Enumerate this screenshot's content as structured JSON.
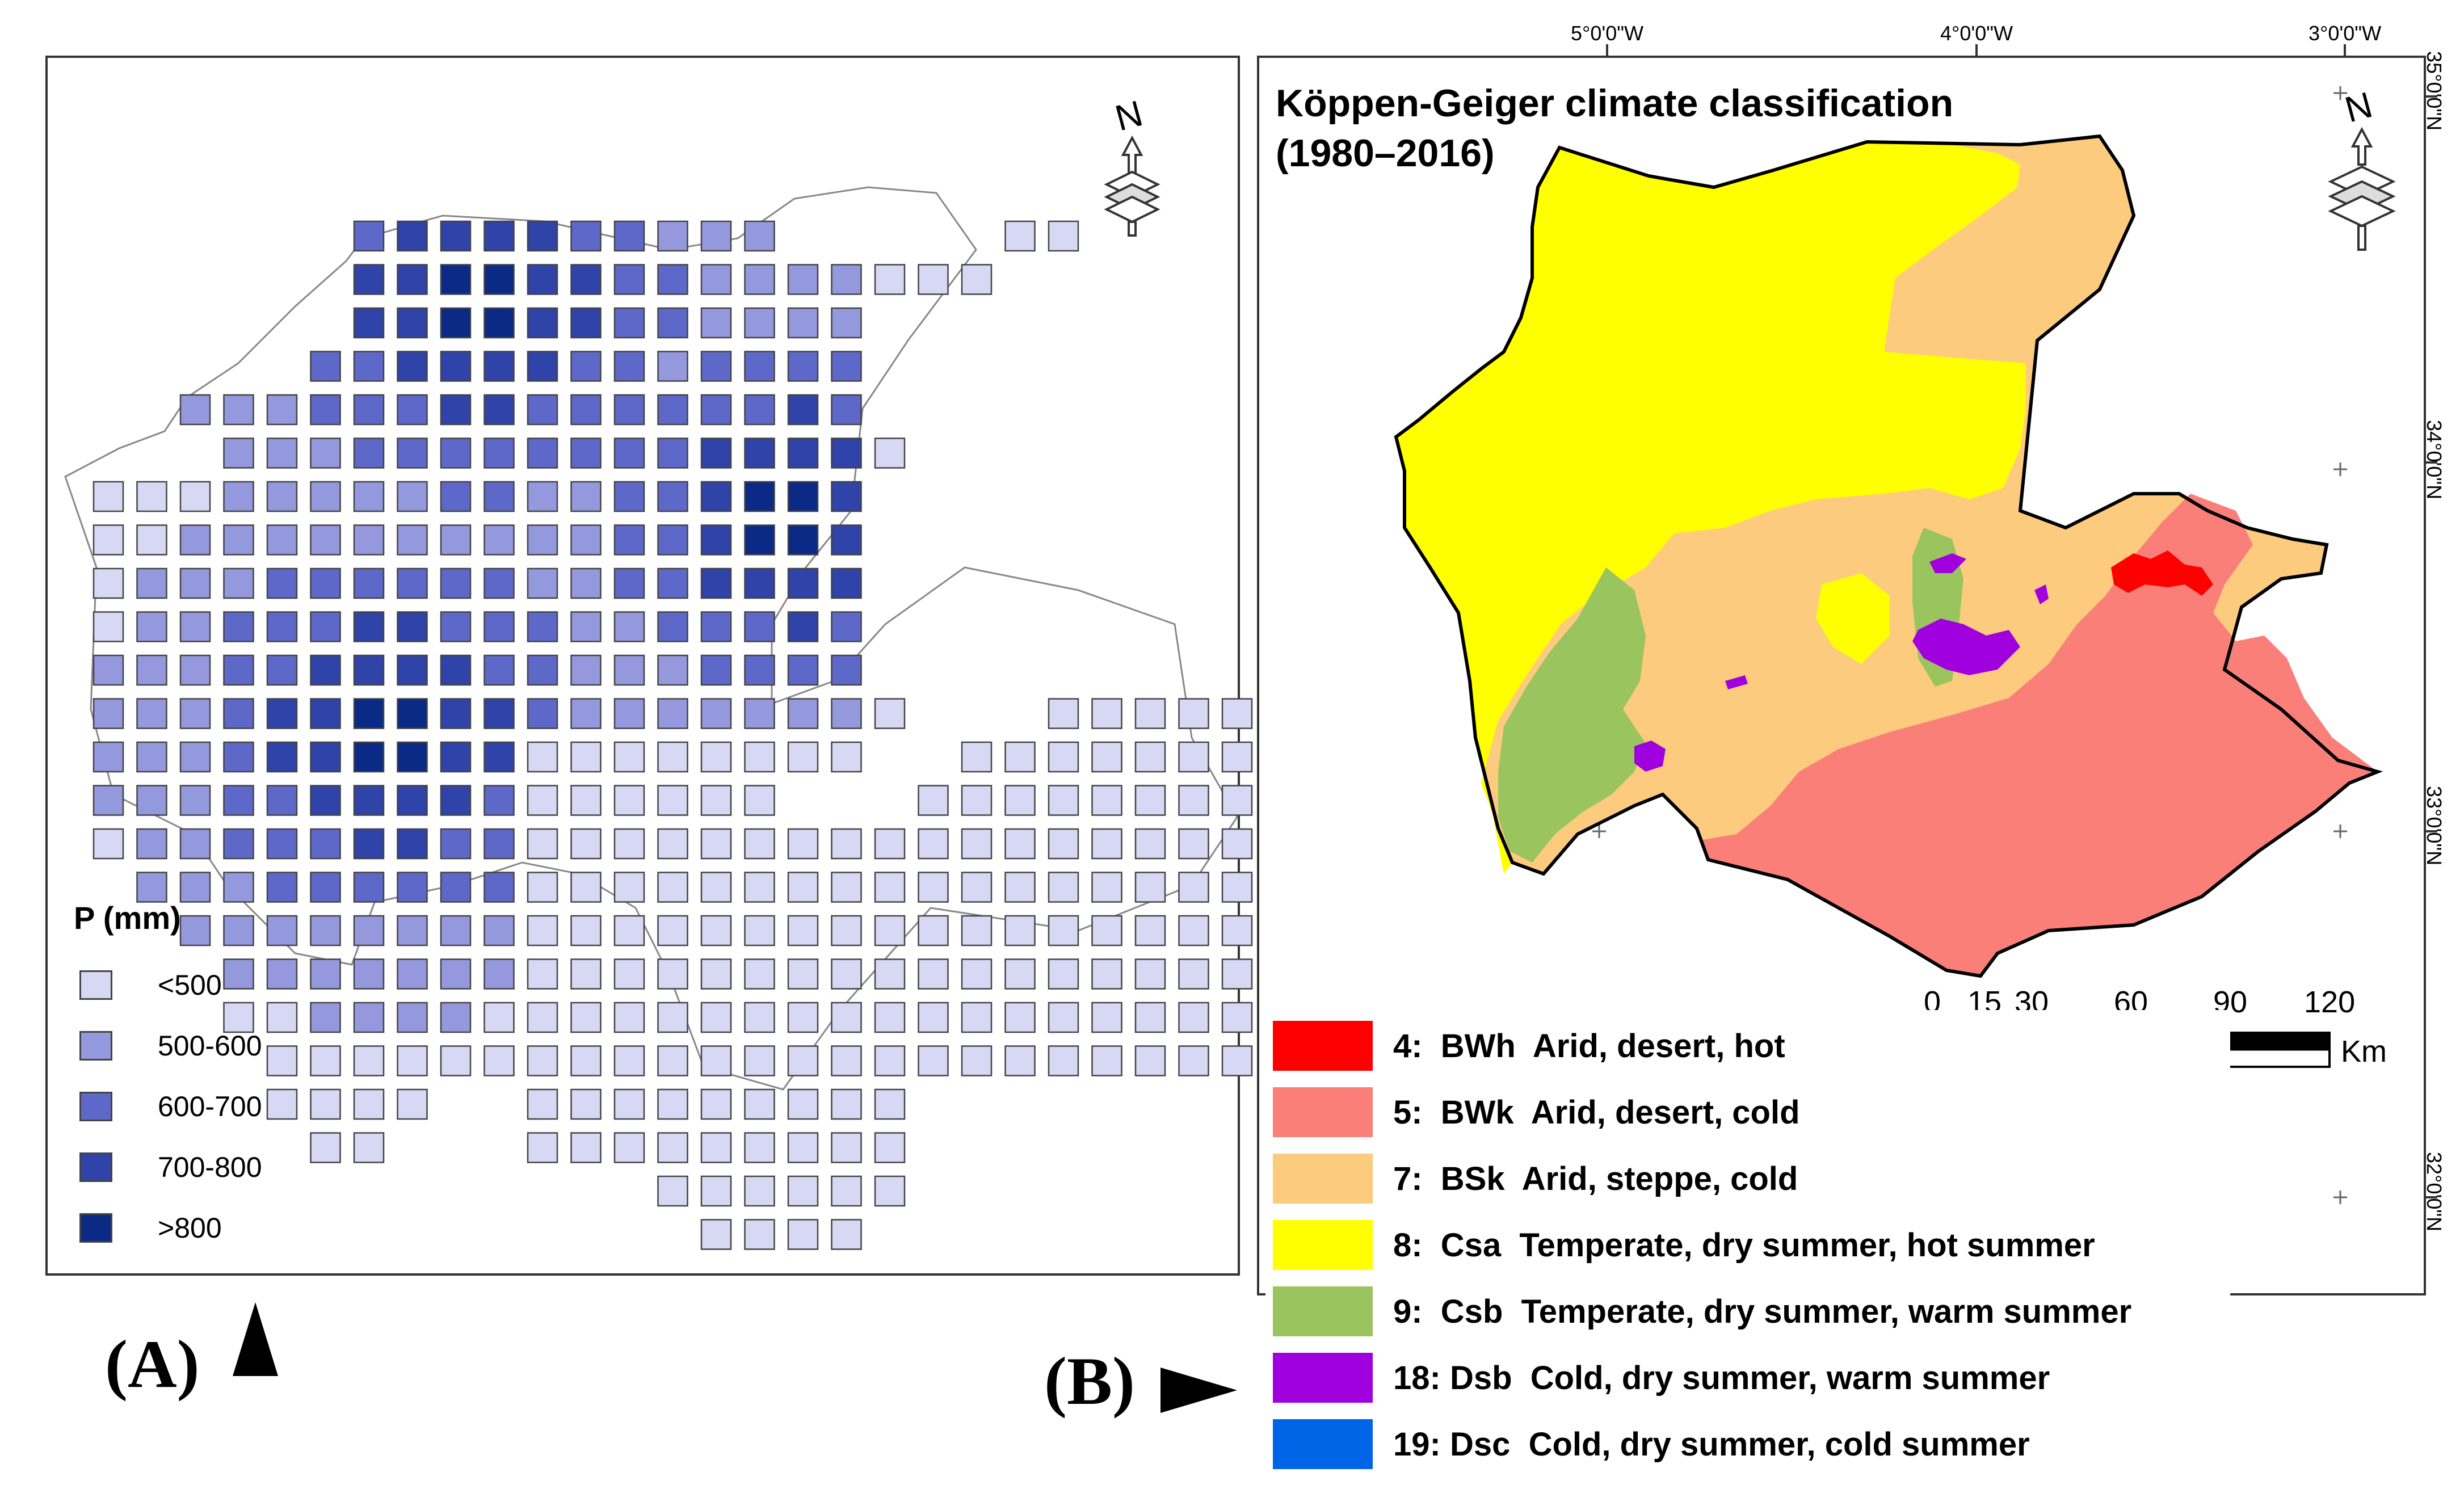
{
  "panelA": {
    "label": "(A)",
    "legend": {
      "title": "P (mm)",
      "classes": [
        {
          "label": "<500",
          "color": "#d7d8f3"
        },
        {
          "label": "500-600",
          "color": "#9498dc"
        },
        {
          "label": "600-700",
          "color": "#5e68c9"
        },
        {
          "label": "700-800",
          "color": "#2f43a8"
        },
        {
          "label": ">800",
          "color": "#0b2a86"
        }
      ]
    },
    "north_arrow": "N"
  },
  "panelB": {
    "label": "(B)",
    "title_line1": "Köppen-Geiger climate classification",
    "title_line2": "(1980–2016)",
    "north_arrow": "N",
    "longitudes": [
      "5°0'0\"W",
      "4°0'0\"W",
      "3°0'0\"W"
    ],
    "latitudes": [
      "35°0'0\"N",
      "34°0'0\"N",
      "33°0'0\"N",
      "32°0'0\"N"
    ],
    "scale_bar": {
      "ticks": [
        "0",
        "15",
        "30",
        "60",
        "90",
        "120"
      ],
      "unit": "Km"
    },
    "legend": [
      {
        "code": "4:  BWh  Arid, desert, hot",
        "color": "#ff0000"
      },
      {
        "code": "5:  BWk  Arid, desert, cold",
        "color": "#fa7f79"
      },
      {
        "code": "7:  BSk  Arid, steppe, cold",
        "color": "#fccb7e"
      },
      {
        "code": "8:  Csa  Temperate, dry summer, hot summer",
        "color": "#ffff00"
      },
      {
        "code": "9:  Csb  Temperate, dry summer, warm summer",
        "color": "#9ac45e"
      },
      {
        "code": "18: Dsb  Cold, dry summer, warm summer",
        "color": "#a100de"
      },
      {
        "code": "19: Dsc  Cold, dry summer, cold summer",
        "color": "#0064e6"
      }
    ]
  }
}
